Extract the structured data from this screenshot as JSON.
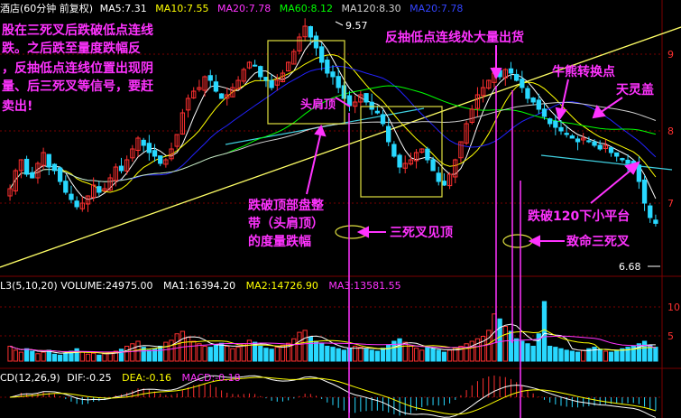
{
  "colors": {
    "bg": "#000000",
    "grid": "#7a0000",
    "up": "#ff3030",
    "down": "#28d8ff",
    "ma5": "#ffffff",
    "ma10": "#ffff00",
    "ma20": "#ff33ff",
    "ma60": "#00ff00",
    "ma120": "#cfcfcf",
    "ma20b": "#2222ff",
    "annot": "#ff33ff",
    "trend": "#ffff66",
    "neck": "#40d0e0",
    "box": "#e0e040"
  },
  "main_header": {
    "name": "酒店(60分钟 前复权)",
    "ma5": "MA5:7.31",
    "ma10": "MA10:7.55",
    "ma20": "MA20:7.78",
    "ma60": "MA60:8.12",
    "ma120": "MA120:8.30",
    "ma20b": "MA20:7.78"
  },
  "vol_header": {
    "name": "L3(5,10,20) VOLUME:24975.00",
    "ma1": "MA1:16394.20",
    "ma2": "MA2:14726.90",
    "ma3": "MA3:13581.55"
  },
  "macd_header": {
    "name": "CD(12,26,9)",
    "dif": "DIF:-0.25",
    "dea": "DEA:-0.16",
    "macd": "MACD:-0.18"
  },
  "price_labels": {
    "high": "9.57",
    "low": "6.68"
  },
  "right_axis": {
    "price_ticks": [
      "9",
      "8",
      "7"
    ],
    "vol_ticks": [
      "10",
      "5"
    ]
  },
  "annotations": {
    "intro": [
      "股在三死叉后跌破低点连线",
      "跌。之后跌至量度跌幅反",
      "，反抽低点连线位置出现阴",
      "量、后三死叉等信号，要赶",
      "卖出!"
    ],
    "head_shoulder": "头肩顶",
    "fanchou": "反抽低点连线处大量出货",
    "bull_bear": "牛熊转换点",
    "tianling": "天灵盖",
    "measure": [
      "跌破顶部盘整",
      "带（头肩顶）",
      "的度量跌幅"
    ],
    "sansi1": "三死叉见顶",
    "break120": "跌破120下小平台",
    "fatal": "致命三死叉"
  },
  "chart_data": {
    "type": "candlestick",
    "title": "酒店(60分钟 前复权)",
    "price_high": 9.57,
    "price_low": 6.68,
    "y_ticks": [
      9,
      8,
      7
    ],
    "indicators": {
      "MA5": 7.31,
      "MA10": 7.55,
      "MA20": 7.78,
      "MA60": 8.12,
      "MA120": 8.3
    },
    "volume": {
      "VOLUME": 24975.0,
      "MA1": 16394.2,
      "MA2": 14726.9,
      "MA3": 13581.55
    },
    "macd": {
      "DIF": -0.25,
      "DEA": -0.16,
      "MACD": -0.18
    },
    "closes": [
      7.2,
      7.45,
      7.6,
      7.4,
      7.35,
      7.55,
      7.7,
      7.5,
      7.45,
      7.3,
      7.15,
      7.05,
      6.95,
      7.0,
      7.1,
      7.25,
      7.15,
      7.2,
      7.35,
      7.5,
      7.45,
      7.6,
      7.75,
      7.9,
      7.8,
      7.7,
      7.65,
      7.55,
      7.6,
      7.75,
      7.95,
      8.25,
      8.45,
      8.55,
      8.6,
      8.75,
      8.7,
      8.55,
      8.45,
      8.5,
      8.6,
      8.7,
      8.85,
      8.95,
      8.9,
      8.75,
      8.7,
      8.6,
      8.7,
      8.8,
      8.95,
      9.1,
      9.3,
      9.45,
      9.3,
      9.15,
      8.95,
      8.8,
      8.75,
      8.6,
      8.45,
      8.35,
      8.4,
      8.5,
      8.4,
      8.3,
      8.25,
      8.1,
      7.85,
      7.65,
      7.5,
      7.55,
      7.6,
      7.7,
      7.75,
      7.6,
      7.45,
      7.3,
      7.25,
      7.4,
      7.6,
      7.85,
      8.1,
      8.3,
      8.5,
      8.6,
      8.7,
      8.8,
      8.75,
      8.85,
      8.8,
      8.7,
      8.6,
      8.45,
      8.4,
      8.3,
      8.2,
      8.1,
      8.05,
      8.0,
      7.95,
      7.9,
      7.85,
      7.9,
      7.85,
      7.8,
      7.75,
      7.8,
      7.7,
      7.65,
      7.6,
      7.55,
      7.5,
      7.3,
      7.0,
      6.8,
      6.72
    ],
    "volumes": [
      30,
      22,
      18,
      25,
      20,
      15,
      18,
      22,
      14,
      12,
      16,
      20,
      25,
      18,
      14,
      16,
      12,
      15,
      18,
      20,
      24,
      30,
      35,
      40,
      28,
      22,
      25,
      30,
      38,
      42,
      55,
      60,
      48,
      40,
      35,
      30,
      28,
      32,
      36,
      30,
      25,
      28,
      35,
      42,
      38,
      30,
      26,
      24,
      28,
      32,
      36,
      45,
      58,
      62,
      48,
      40,
      35,
      30,
      28,
      25,
      22,
      26,
      30,
      28,
      24,
      22,
      20,
      26,
      32,
      40,
      45,
      38,
      30,
      26,
      22,
      28,
      25,
      22,
      18,
      22,
      26,
      30,
      35,
      40,
      45,
      50,
      62,
      95,
      85,
      70,
      60,
      45,
      40,
      35,
      30,
      55,
      120,
      30,
      28,
      25,
      22,
      20,
      18,
      22,
      25,
      28,
      24,
      20,
      18,
      22,
      25,
      28,
      30,
      35,
      40,
      32,
      28
    ]
  }
}
